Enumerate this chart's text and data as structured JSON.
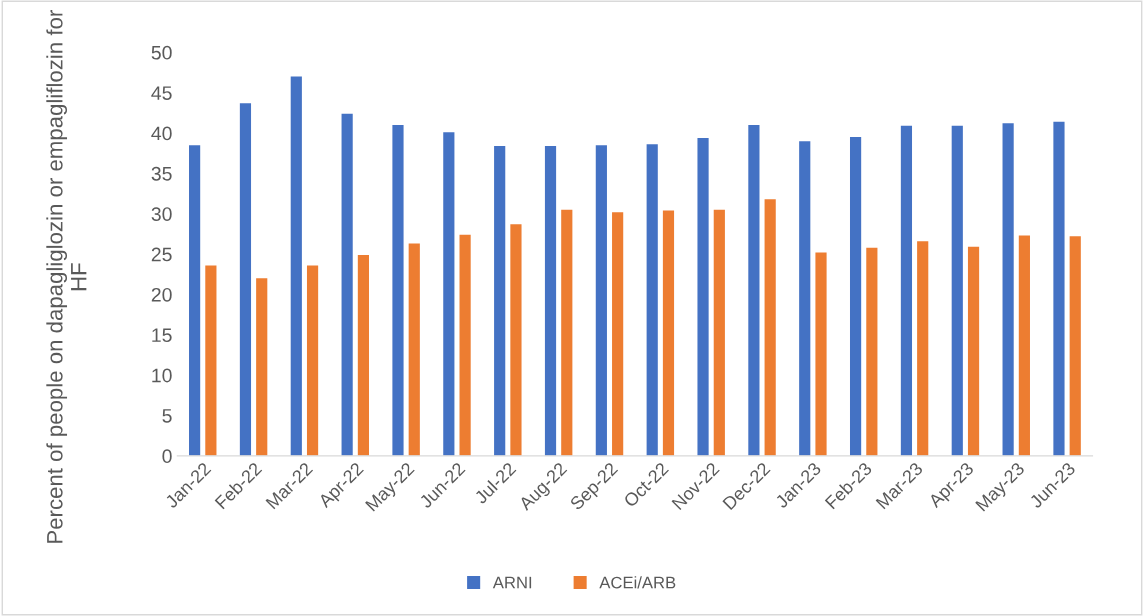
{
  "chart_data": {
    "type": "bar",
    "ylabel": "Percent of people on dapagliglozin or empagliflozin for HF",
    "categories": [
      "Jan-22",
      "Feb-22",
      "Mar-22",
      "Apr-22",
      "May-22",
      "Jun-22",
      "Jul-22",
      "Aug-22",
      "Sep-22",
      "Oct-22",
      "Nov-22",
      "Dec-22",
      "Jan-23",
      "Feb-23",
      "Mar-23",
      "Apr-23",
      "May-23",
      "Jun-23"
    ],
    "series": [
      {
        "name": "ARNI",
        "color": "#4472c4",
        "values": [
          38.5,
          43.7,
          47.0,
          42.4,
          41.0,
          40.1,
          38.4,
          38.4,
          38.5,
          38.6,
          39.4,
          41.0,
          39.0,
          39.5,
          40.9,
          40.9,
          41.2,
          41.4
        ]
      },
      {
        "name": "ACEi/ARB",
        "color": "#ed7d31",
        "values": [
          23.6,
          22.0,
          23.6,
          24.9,
          26.3,
          27.4,
          28.7,
          30.5,
          30.2,
          30.4,
          30.5,
          31.8,
          25.2,
          25.8,
          26.6,
          25.9,
          27.3,
          27.2
        ]
      }
    ],
    "ylim": [
      0,
      50
    ],
    "yticks": [
      0,
      5,
      10,
      15,
      20,
      25,
      30,
      35,
      40,
      45,
      50
    ],
    "grid": false,
    "legend": "bottom"
  }
}
